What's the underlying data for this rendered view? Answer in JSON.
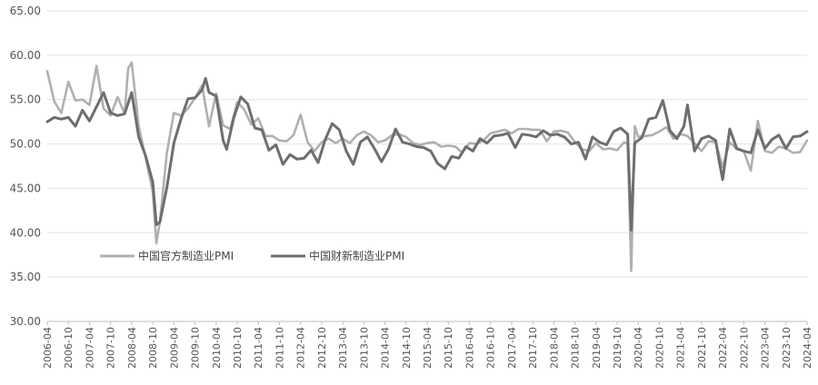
{
  "chart_data": {
    "type": "line",
    "title": "",
    "xlabel": "",
    "ylabel": "",
    "ylim": [
      30,
      65
    ],
    "yticks": [
      "30.00",
      "35.00",
      "40.00",
      "45.00",
      "50.00",
      "55.00",
      "60.00",
      "65.00"
    ],
    "xticks": [
      "2006-04",
      "2006-10",
      "2007-04",
      "2007-10",
      "2008-04",
      "2008-10",
      "2009-04",
      "2009-10",
      "2010-04",
      "2010-10",
      "2011-04",
      "2011-10",
      "2012-04",
      "2012-10",
      "2013-04",
      "2013-10",
      "2014-04",
      "2014-10",
      "2015-04",
      "2015-10",
      "2016-04",
      "2016-10",
      "2017-04",
      "2017-10",
      "2018-04",
      "2018-10",
      "2019-04",
      "2019-10",
      "2020-04",
      "2020-10",
      "2021-04",
      "2021-10",
      "2022-04",
      "2022-10",
      "2023-04",
      "2023-10",
      "2024-04"
    ],
    "grid": "horizontal",
    "legend_position": "lower-left",
    "series": [
      {
        "name": "中国官方制造业PMI",
        "color": "#b0b0b0",
        "points": [
          [
            "2006-04",
            58.2
          ],
          [
            "2006-06",
            54.8
          ],
          [
            "2006-08",
            53.5
          ],
          [
            "2006-10",
            57.0
          ],
          [
            "2006-12",
            54.9
          ],
          [
            "2007-02",
            55.0
          ],
          [
            "2007-04",
            54.4
          ],
          [
            "2007-06",
            58.8
          ],
          [
            "2007-08",
            54.0
          ],
          [
            "2007-10",
            53.2
          ],
          [
            "2007-12",
            55.3
          ],
          [
            "2008-02",
            53.4
          ],
          [
            "2008-03",
            58.5
          ],
          [
            "2008-04",
            59.2
          ],
          [
            "2008-06",
            52.0
          ],
          [
            "2008-08",
            48.4
          ],
          [
            "2008-10",
            44.6
          ],
          [
            "2008-11",
            38.8
          ],
          [
            "2008-12",
            41.2
          ],
          [
            "2009-02",
            49.0
          ],
          [
            "2009-04",
            53.5
          ],
          [
            "2009-06",
            53.2
          ],
          [
            "2009-08",
            54.0
          ],
          [
            "2009-10",
            55.2
          ],
          [
            "2009-12",
            56.6
          ],
          [
            "2010-02",
            52.0
          ],
          [
            "2010-04",
            55.7
          ],
          [
            "2010-06",
            52.1
          ],
          [
            "2010-08",
            51.7
          ],
          [
            "2010-10",
            54.7
          ],
          [
            "2010-12",
            53.9
          ],
          [
            "2011-02",
            52.2
          ],
          [
            "2011-04",
            52.9
          ],
          [
            "2011-06",
            50.9
          ],
          [
            "2011-08",
            50.9
          ],
          [
            "2011-10",
            50.4
          ],
          [
            "2011-12",
            50.3
          ],
          [
            "2012-02",
            51.0
          ],
          [
            "2012-04",
            53.3
          ],
          [
            "2012-06",
            50.2
          ],
          [
            "2012-08",
            49.2
          ],
          [
            "2012-10",
            50.2
          ],
          [
            "2012-12",
            50.6
          ],
          [
            "2013-02",
            50.1
          ],
          [
            "2013-04",
            50.6
          ],
          [
            "2013-06",
            50.1
          ],
          [
            "2013-08",
            51.0
          ],
          [
            "2013-10",
            51.4
          ],
          [
            "2013-12",
            51.0
          ],
          [
            "2014-02",
            50.2
          ],
          [
            "2014-04",
            50.4
          ],
          [
            "2014-06",
            51.0
          ],
          [
            "2014-08",
            51.1
          ],
          [
            "2014-10",
            50.8
          ],
          [
            "2014-12",
            50.1
          ],
          [
            "2015-02",
            49.9
          ],
          [
            "2015-04",
            50.1
          ],
          [
            "2015-06",
            50.2
          ],
          [
            "2015-08",
            49.7
          ],
          [
            "2015-10",
            49.8
          ],
          [
            "2015-12",
            49.7
          ],
          [
            "2016-02",
            49.0
          ],
          [
            "2016-04",
            50.1
          ],
          [
            "2016-06",
            50.0
          ],
          [
            "2016-08",
            50.4
          ],
          [
            "2016-10",
            51.2
          ],
          [
            "2016-12",
            51.4
          ],
          [
            "2017-02",
            51.6
          ],
          [
            "2017-04",
            51.2
          ],
          [
            "2017-06",
            51.7
          ],
          [
            "2017-08",
            51.7
          ],
          [
            "2017-10",
            51.6
          ],
          [
            "2017-12",
            51.6
          ],
          [
            "2018-02",
            50.3
          ],
          [
            "2018-04",
            51.4
          ],
          [
            "2018-06",
            51.5
          ],
          [
            "2018-08",
            51.3
          ],
          [
            "2018-10",
            50.2
          ],
          [
            "2018-12",
            49.4
          ],
          [
            "2019-02",
            49.2
          ],
          [
            "2019-04",
            50.1
          ],
          [
            "2019-06",
            49.4
          ],
          [
            "2019-08",
            49.5
          ],
          [
            "2019-10",
            49.3
          ],
          [
            "2019-12",
            50.2
          ],
          [
            "2020-01",
            50.0
          ],
          [
            "2020-02",
            35.7
          ],
          [
            "2020-03",
            52.0
          ],
          [
            "2020-04",
            50.8
          ],
          [
            "2020-06",
            50.9
          ],
          [
            "2020-08",
            51.0
          ],
          [
            "2020-10",
            51.4
          ],
          [
            "2020-12",
            51.9
          ],
          [
            "2021-02",
            50.6
          ],
          [
            "2021-04",
            51.1
          ],
          [
            "2021-06",
            50.9
          ],
          [
            "2021-08",
            50.1
          ],
          [
            "2021-10",
            49.2
          ],
          [
            "2021-12",
            50.3
          ],
          [
            "2022-02",
            50.2
          ],
          [
            "2022-04",
            47.4
          ],
          [
            "2022-06",
            50.2
          ],
          [
            "2022-08",
            49.4
          ],
          [
            "2022-10",
            49.2
          ],
          [
            "2022-12",
            47.0
          ],
          [
            "2023-02",
            52.6
          ],
          [
            "2023-04",
            49.2
          ],
          [
            "2023-06",
            49.0
          ],
          [
            "2023-08",
            49.7
          ],
          [
            "2023-10",
            49.5
          ],
          [
            "2023-12",
            49.0
          ],
          [
            "2024-02",
            49.1
          ],
          [
            "2024-04",
            50.4
          ]
        ]
      },
      {
        "name": "中国财新制造业PMI",
        "color": "#6e6e6e",
        "points": [
          [
            "2006-04",
            52.5
          ],
          [
            "2006-06",
            53.0
          ],
          [
            "2006-08",
            52.8
          ],
          [
            "2006-10",
            53.0
          ],
          [
            "2006-12",
            52.0
          ],
          [
            "2007-02",
            53.8
          ],
          [
            "2007-04",
            52.6
          ],
          [
            "2007-06",
            54.2
          ],
          [
            "2007-08",
            55.8
          ],
          [
            "2007-10",
            53.5
          ],
          [
            "2007-12",
            53.2
          ],
          [
            "2008-02",
            53.4
          ],
          [
            "2008-04",
            55.8
          ],
          [
            "2008-06",
            50.8
          ],
          [
            "2008-08",
            48.6
          ],
          [
            "2008-10",
            45.7
          ],
          [
            "2008-11",
            40.9
          ],
          [
            "2008-12",
            41.2
          ],
          [
            "2009-02",
            45.1
          ],
          [
            "2009-04",
            50.1
          ],
          [
            "2009-06",
            52.8
          ],
          [
            "2009-08",
            55.1
          ],
          [
            "2009-10",
            55.2
          ],
          [
            "2009-12",
            56.1
          ],
          [
            "2010-01",
            57.4
          ],
          [
            "2010-02",
            55.8
          ],
          [
            "2010-04",
            55.4
          ],
          [
            "2010-06",
            50.4
          ],
          [
            "2010-07",
            49.4
          ],
          [
            "2010-09",
            52.9
          ],
          [
            "2010-11",
            55.3
          ],
          [
            "2011-01",
            54.5
          ],
          [
            "2011-03",
            51.8
          ],
          [
            "2011-05",
            51.6
          ],
          [
            "2011-07",
            49.3
          ],
          [
            "2011-09",
            49.9
          ],
          [
            "2011-11",
            47.7
          ],
          [
            "2012-01",
            48.8
          ],
          [
            "2012-03",
            48.3
          ],
          [
            "2012-05",
            48.4
          ],
          [
            "2012-07",
            49.3
          ],
          [
            "2012-09",
            47.9
          ],
          [
            "2012-11",
            50.5
          ],
          [
            "2013-01",
            52.3
          ],
          [
            "2013-03",
            51.6
          ],
          [
            "2013-05",
            49.2
          ],
          [
            "2013-07",
            47.7
          ],
          [
            "2013-09",
            50.2
          ],
          [
            "2013-11",
            50.8
          ],
          [
            "2014-01",
            49.5
          ],
          [
            "2014-03",
            48.0
          ],
          [
            "2014-05",
            49.4
          ],
          [
            "2014-07",
            51.7
          ],
          [
            "2014-09",
            50.2
          ],
          [
            "2014-11",
            50.0
          ],
          [
            "2015-01",
            49.7
          ],
          [
            "2015-03",
            49.6
          ],
          [
            "2015-05",
            49.2
          ],
          [
            "2015-07",
            47.8
          ],
          [
            "2015-09",
            47.2
          ],
          [
            "2015-11",
            48.6
          ],
          [
            "2016-01",
            48.4
          ],
          [
            "2016-03",
            49.7
          ],
          [
            "2016-05",
            49.2
          ],
          [
            "2016-07",
            50.6
          ],
          [
            "2016-09",
            50.1
          ],
          [
            "2016-11",
            50.9
          ],
          [
            "2017-01",
            51.0
          ],
          [
            "2017-03",
            51.2
          ],
          [
            "2017-05",
            49.6
          ],
          [
            "2017-07",
            51.1
          ],
          [
            "2017-09",
            51.0
          ],
          [
            "2017-11",
            50.8
          ],
          [
            "2018-01",
            51.5
          ],
          [
            "2018-03",
            51.0
          ],
          [
            "2018-05",
            51.1
          ],
          [
            "2018-07",
            50.8
          ],
          [
            "2018-09",
            50.0
          ],
          [
            "2018-11",
            50.2
          ],
          [
            "2019-01",
            48.3
          ],
          [
            "2019-03",
            50.8
          ],
          [
            "2019-05",
            50.2
          ],
          [
            "2019-07",
            49.9
          ],
          [
            "2019-09",
            51.4
          ],
          [
            "2019-11",
            51.8
          ],
          [
            "2020-01",
            51.1
          ],
          [
            "2020-02",
            40.3
          ],
          [
            "2020-03",
            50.1
          ],
          [
            "2020-05",
            50.7
          ],
          [
            "2020-07",
            52.8
          ],
          [
            "2020-09",
            53.0
          ],
          [
            "2020-11",
            54.9
          ],
          [
            "2021-01",
            51.5
          ],
          [
            "2021-03",
            50.6
          ],
          [
            "2021-05",
            52.0
          ],
          [
            "2021-06",
            54.4
          ],
          [
            "2021-08",
            49.2
          ],
          [
            "2021-10",
            50.6
          ],
          [
            "2021-12",
            50.9
          ],
          [
            "2022-02",
            50.4
          ],
          [
            "2022-03",
            48.1
          ],
          [
            "2022-04",
            46.0
          ],
          [
            "2022-06",
            51.7
          ],
          [
            "2022-08",
            49.5
          ],
          [
            "2022-10",
            49.2
          ],
          [
            "2022-12",
            49.0
          ],
          [
            "2023-02",
            51.6
          ],
          [
            "2023-04",
            49.5
          ],
          [
            "2023-06",
            50.5
          ],
          [
            "2023-08",
            51.0
          ],
          [
            "2023-10",
            49.5
          ],
          [
            "2023-12",
            50.8
          ],
          [
            "2024-02",
            50.9
          ],
          [
            "2024-04",
            51.4
          ]
        ]
      }
    ]
  }
}
